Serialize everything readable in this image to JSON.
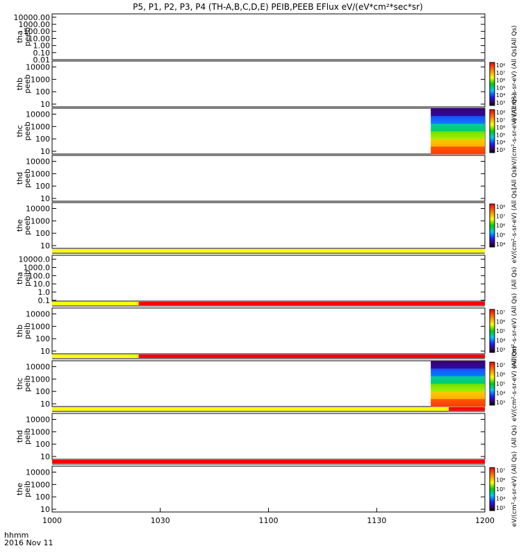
{
  "title": "P5, P1, P2, P3, P4 (TH-A,B,C,D,E) PEIB,PEEB EFlux eV/(eV*cm²*sec*sr)",
  "time_label": "hhmm",
  "date_label": "2016 Nov 11",
  "colors": {
    "mode_yellow": "#ffff00",
    "mode_red": "#ff0000",
    "background": "#ffffff",
    "axes": "#000000"
  },
  "chart_data": {
    "type": "heatmap",
    "xlim": [
      1000,
      1200
    ],
    "xticks": [
      {
        "value": 1000,
        "label": "1000"
      },
      {
        "value": 1030,
        "label": "1030"
      },
      {
        "value": 1100,
        "label": "1100"
      },
      {
        "value": 1130,
        "label": "1130"
      },
      {
        "value": 1200,
        "label": "1200"
      }
    ],
    "panels": [
      {
        "id": "tha-peeb",
        "probe": "tha",
        "product": "peeb",
        "yticks": [
          "10000.00",
          "1000.00",
          "100.00",
          "10.00",
          "1.00",
          "0.10",
          "0.01"
        ],
        "ylim": [
          0.01,
          30000
        ],
        "data_span": null,
        "colorbar": null,
        "side_label": "(All Qs)",
        "mode_bar": null
      },
      {
        "id": "thb-peeb",
        "probe": "thb",
        "product": "peeb",
        "yticks": [
          "10000",
          "1000",
          "100",
          "10"
        ],
        "ylim": [
          6,
          30000
        ],
        "data_span": null,
        "colorbar": {
          "ticks": [
            "10⁸",
            "10⁷",
            "10⁶",
            "10⁵",
            "10⁴",
            "10³"
          ]
        },
        "side_label": "eV/(cm²-s-sr-eV) (All Qs)",
        "mode_bar": null
      },
      {
        "id": "thc-peeb",
        "probe": "thc",
        "product": "peeb",
        "yticks": [
          "10000",
          "1000",
          "100",
          "10"
        ],
        "ylim": [
          6,
          30000
        ],
        "data_span": [
          1145,
          1200
        ],
        "colorbar": {
          "ticks": [
            "10⁸",
            "10⁷",
            "10⁶",
            "10⁵",
            "10⁴",
            "10³"
          ]
        },
        "side_label": "eV/(cm²-s-sr-eV) (All Qs)",
        "mode_bar": null
      },
      {
        "id": "thd-peeb",
        "probe": "thd",
        "product": "peeb",
        "yticks": [
          "10000",
          "1000",
          "100",
          "10"
        ],
        "ylim": [
          6,
          30000
        ],
        "data_span": null,
        "colorbar": null,
        "side_label": "(All Qs)",
        "mode_bar": null
      },
      {
        "id": "the-peeb",
        "probe": "the",
        "product": "peeb",
        "yticks": [
          "10000",
          "1000",
          "100",
          "10"
        ],
        "ylim": [
          6,
          30000
        ],
        "data_span": null,
        "colorbar": {
          "ticks": [
            "10⁸",
            "10⁷",
            "10⁶",
            "10⁵",
            "10⁴"
          ]
        },
        "side_label": "eV/(cm²-s-sr-eV) (All Qs)",
        "mode_bar": [
          {
            "from": 1000,
            "to": 1200,
            "color": "yellow"
          }
        ]
      },
      {
        "id": "tha-peib",
        "probe": "tha",
        "product": "peib",
        "yticks": [
          "10000.0",
          "1000.0",
          "100.0",
          "10.0",
          "1.0",
          "0.1"
        ],
        "ylim": [
          0.08,
          30000
        ],
        "data_span": null,
        "colorbar": null,
        "side_label": "(All Qs)",
        "mode_bar": [
          {
            "from": 1000,
            "to": 1024,
            "color": "yellow"
          },
          {
            "from": 1024,
            "to": 1200,
            "color": "red"
          }
        ]
      },
      {
        "id": "thb-peib",
        "probe": "thb",
        "product": "peib",
        "yticks": [
          "10000",
          "1000",
          "100",
          "10"
        ],
        "ylim": [
          6,
          30000
        ],
        "data_span": null,
        "colorbar": {
          "ticks": [
            "10⁷",
            "10⁶",
            "10⁵",
            "10⁴",
            "10³"
          ]
        },
        "side_label": "eV/(cm²-s-sr-eV) (All Qs)",
        "mode_bar": [
          {
            "from": 1000,
            "to": 1024,
            "color": "yellow"
          },
          {
            "from": 1024,
            "to": 1200,
            "color": "red"
          }
        ]
      },
      {
        "id": "thc-peib",
        "probe": "thc",
        "product": "peib",
        "yticks": [
          "10000",
          "1000",
          "100",
          "10"
        ],
        "ylim": [
          6,
          30000
        ],
        "data_span": [
          1145,
          1200
        ],
        "colorbar": {
          "ticks": [
            "10⁷",
            "10⁶",
            "10⁵",
            "10⁴",
            "10³"
          ]
        },
        "side_label": "eV/(cm²-s-sr-eV) (All Qs)",
        "mode_bar": [
          {
            "from": 1000,
            "to": 1150,
            "color": "yellow"
          },
          {
            "from": 1150,
            "to": 1200,
            "color": "red"
          }
        ]
      },
      {
        "id": "thd-peib",
        "probe": "thd",
        "product": "peib",
        "yticks": [
          "10000",
          "1000",
          "100",
          "10"
        ],
        "ylim": [
          6,
          30000
        ],
        "data_span": null,
        "colorbar": null,
        "side_label": "(All Qs)",
        "mode_bar": [
          {
            "from": 1000,
            "to": 1200,
            "color": "red"
          }
        ]
      },
      {
        "id": "the-peib",
        "probe": "the",
        "product": "peib",
        "yticks": [
          "10000",
          "1000",
          "100",
          "10"
        ],
        "ylim": [
          6,
          30000
        ],
        "data_span": null,
        "colorbar": {
          "ticks": [
            "10⁷",
            "10⁶",
            "10⁵",
            "10⁴",
            "10³"
          ]
        },
        "side_label": "eV/(cm²-s-sr-eV) (All Qs)",
        "mode_bar": null
      }
    ]
  }
}
